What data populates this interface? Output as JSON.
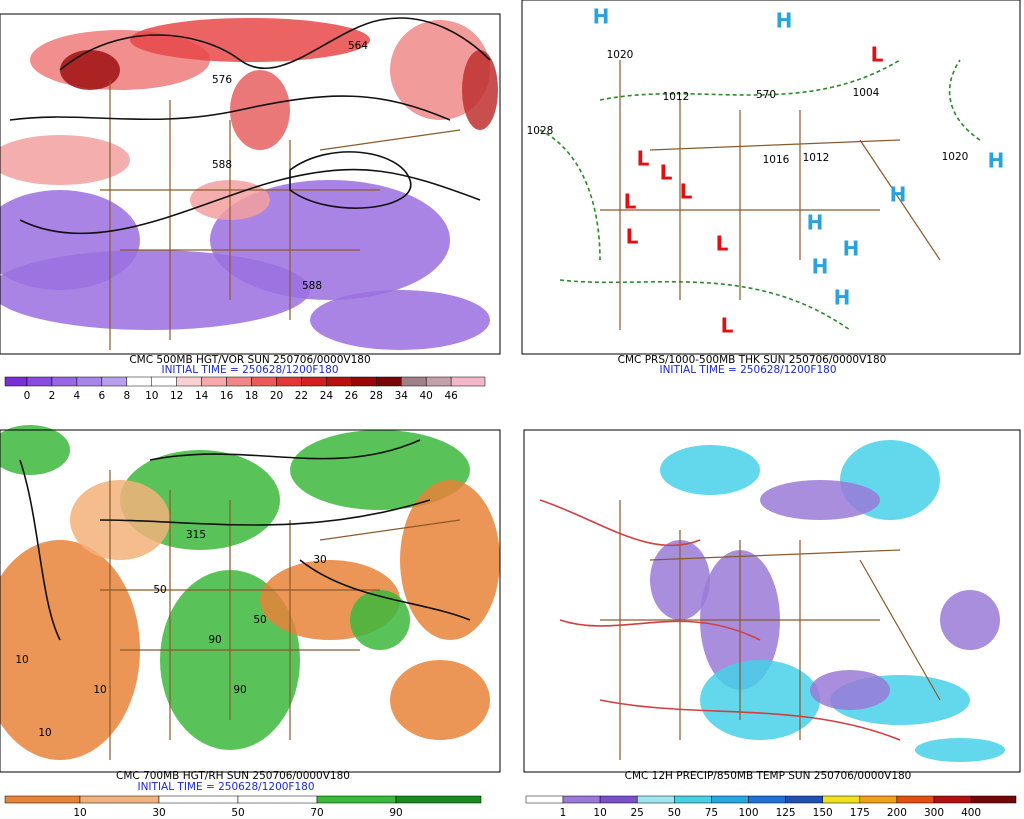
{
  "panels": [
    {
      "caption": "CMC 500MB HGT/VOR SUN 250706/0000V180",
      "initial_time": "INITIAL TIME = 250628/1200F180",
      "colorbar": {
        "colors": [
          "#7a2fd6",
          "#8a4be0",
          "#9966e6",
          "#a884ea",
          "#b9a0ee",
          "#ffffff",
          "#ffffff",
          "#fbd0d0",
          "#f7a9a9",
          "#f28585",
          "#ea5a5a",
          "#e03838",
          "#d02020",
          "#b81010",
          "#980808",
          "#7a0505",
          "#a08088",
          "#c4a0aa",
          "#f0b8c8"
        ],
        "labels": [
          0,
          2,
          4,
          6,
          8,
          10,
          12,
          14,
          16,
          18,
          20,
          22,
          24,
          26,
          28,
          34,
          40,
          46
        ]
      },
      "map_labels": [
        "564",
        "576",
        "588",
        "588"
      ]
    },
    {
      "caption": "CMC PRS/1000-500MB THK SUN 250706/0000V180",
      "initial_time": "INITIAL TIME = 250628/1200F180",
      "map_labels": [
        "H",
        "H",
        "H",
        "H",
        "H",
        "H",
        "H",
        "H",
        "L",
        "L",
        "L",
        "L",
        "L",
        "L",
        "L",
        "L",
        "1020",
        "1028",
        "1012",
        "1016",
        "1012",
        "1020",
        "570",
        "1004"
      ]
    },
    {
      "caption": "CMC 700MB HGT/RH SUN 250706/0000V180",
      "initial_time": "INITIAL TIME = 250628/1200F180",
      "colorbar": {
        "colors": [
          "#e8833a",
          "#f3b27a",
          "#ffffff",
          "#ffffff",
          "#3cb83c",
          "#1a8c1a"
        ],
        "labels": [
          10,
          30,
          50,
          70,
          90
        ]
      },
      "map_labels": [
        "315",
        "10",
        "10",
        "10",
        "50",
        "50",
        "90",
        "90",
        "30"
      ]
    },
    {
      "caption": "CMC 12H PRECIP/850MB TEMP SUN 250706/0000V180",
      "colorbar": {
        "colors": [
          "#ffffff",
          "#9a7ad8",
          "#7a50c8",
          "#9ae8f0",
          "#48d0e8",
          "#28a8e0",
          "#2070d8",
          "#2050b0",
          "#f0e020",
          "#f0a020",
          "#e05010",
          "#b01010",
          "#700808",
          "#b08890"
        ],
        "labels": [
          1,
          10,
          25,
          50,
          75,
          100,
          125,
          150,
          175,
          200,
          300,
          400
        ]
      }
    }
  ]
}
